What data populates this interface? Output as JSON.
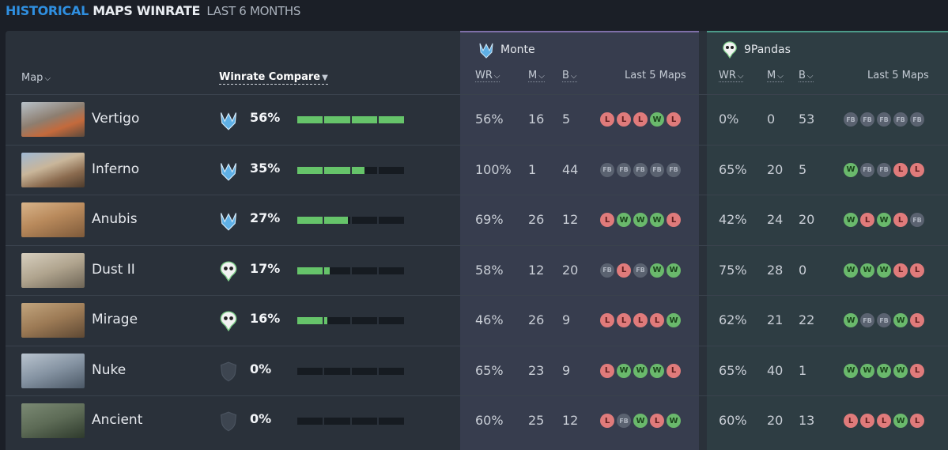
{
  "title": {
    "highlight": "HISTORICAL",
    "main": "MAPS WINRATE",
    "sub": "LAST 6 MONTHS"
  },
  "headers": {
    "map": "Map",
    "winrate_compare": "Winrate Compare",
    "wr": "WR",
    "m": "M",
    "b": "B",
    "last5": "Last 5 Maps"
  },
  "teams": [
    {
      "name": "Monte",
      "icon": "monte-logo-icon"
    },
    {
      "name": "9Pandas",
      "icon": "9pandas-logo-icon"
    }
  ],
  "rows": [
    {
      "map": "Vertigo",
      "leader": "monte",
      "winrate": "56%",
      "bar_fill": 1.0,
      "monte": {
        "wr": "56%",
        "m": "16",
        "b": "5",
        "last5": [
          "L",
          "L",
          "L",
          "W",
          "L"
        ]
      },
      "pandas": {
        "wr": "0%",
        "m": "0",
        "b": "53",
        "last5": [
          "FB",
          "FB",
          "FB",
          "FB",
          "FB"
        ]
      }
    },
    {
      "map": "Inferno",
      "leader": "monte",
      "winrate": "35%",
      "bar_fill": 0.63,
      "monte": {
        "wr": "100%",
        "m": "1",
        "b": "44",
        "last5": [
          "FB",
          "FB",
          "FB",
          "FB",
          "FB"
        ]
      },
      "pandas": {
        "wr": "65%",
        "m": "20",
        "b": "5",
        "last5": [
          "W",
          "FB",
          "FB",
          "L",
          "L"
        ]
      }
    },
    {
      "map": "Anubis",
      "leader": "monte",
      "winrate": "27%",
      "bar_fill": 0.48,
      "monte": {
        "wr": "69%",
        "m": "26",
        "b": "12",
        "last5": [
          "L",
          "W",
          "W",
          "W",
          "L"
        ]
      },
      "pandas": {
        "wr": "42%",
        "m": "24",
        "b": "20",
        "last5": [
          "W",
          "L",
          "W",
          "L",
          "FB"
        ]
      }
    },
    {
      "map": "Dust II",
      "leader": "pandas",
      "winrate": "17%",
      "bar_fill": 0.3,
      "monte": {
        "wr": "58%",
        "m": "12",
        "b": "20",
        "last5": [
          "FB",
          "L",
          "FB",
          "W",
          "W"
        ]
      },
      "pandas": {
        "wr": "75%",
        "m": "28",
        "b": "0",
        "last5": [
          "W",
          "W",
          "W",
          "L",
          "L"
        ]
      }
    },
    {
      "map": "Mirage",
      "leader": "pandas",
      "winrate": "16%",
      "bar_fill": 0.28,
      "monte": {
        "wr": "46%",
        "m": "26",
        "b": "9",
        "last5": [
          "L",
          "L",
          "L",
          "L",
          "W"
        ]
      },
      "pandas": {
        "wr": "62%",
        "m": "21",
        "b": "22",
        "last5": [
          "W",
          "FB",
          "FB",
          "W",
          "L"
        ]
      }
    },
    {
      "map": "Nuke",
      "leader": "none",
      "winrate": "0%",
      "bar_fill": 0,
      "monte": {
        "wr": "65%",
        "m": "23",
        "b": "9",
        "last5": [
          "L",
          "W",
          "W",
          "W",
          "L"
        ]
      },
      "pandas": {
        "wr": "65%",
        "m": "40",
        "b": "1",
        "last5": [
          "W",
          "W",
          "W",
          "W",
          "L"
        ]
      }
    },
    {
      "map": "Ancient",
      "leader": "none",
      "winrate": "0%",
      "bar_fill": 0,
      "monte": {
        "wr": "60%",
        "m": "25",
        "b": "12",
        "last5": [
          "L",
          "FB",
          "W",
          "L",
          "W"
        ]
      },
      "pandas": {
        "wr": "60%",
        "m": "20",
        "b": "13",
        "last5": [
          "L",
          "L",
          "L",
          "W",
          "L"
        ]
      }
    }
  ],
  "colors": {
    "accent_blue": "#2f8fe0",
    "win": "#6ab96c",
    "loss": "#e07b7b",
    "forfeit": "#5a6270",
    "bar_fill": "#66c46a"
  }
}
